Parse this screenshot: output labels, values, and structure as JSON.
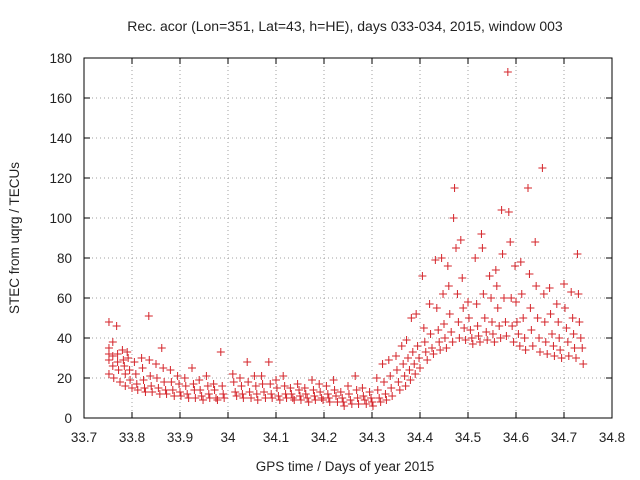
{
  "chart_data": {
    "type": "scatter",
    "title": "Rec. acor (Lon=351, Lat=43, h=HE), days 033-034, 2015, window 003",
    "xlabel": "GPS time / Days of year 2015",
    "ylabel": "STEC from uqrg / TECUs",
    "xlim": [
      33.7,
      34.8
    ],
    "ylim": [
      0,
      180
    ],
    "xticks": [
      "33.7",
      "33.8",
      "33.9",
      "34",
      "34.1",
      "34.2",
      "34.3",
      "34.4",
      "34.5",
      "34.6",
      "34.7",
      "34.8"
    ],
    "yticks": [
      "0",
      "20",
      "40",
      "60",
      "80",
      "100",
      "120",
      "140",
      "160",
      "180"
    ],
    "grid": true,
    "marker": "plus",
    "color": "#d4242a",
    "series": [
      {
        "points": [
          [
            33.752,
            48
          ],
          [
            33.752,
            35
          ],
          [
            33.752,
            32
          ],
          [
            33.752,
            29
          ],
          [
            33.752,
            22
          ],
          [
            33.76,
            38
          ],
          [
            33.76,
            31
          ],
          [
            33.76,
            26
          ],
          [
            33.762,
            20
          ],
          [
            33.768,
            46
          ],
          [
            33.77,
            32
          ],
          [
            33.77,
            28
          ],
          [
            33.772,
            24
          ],
          [
            33.775,
            18
          ],
          [
            33.78,
            34
          ],
          [
            33.782,
            29
          ],
          [
            33.784,
            26
          ],
          [
            33.786,
            22
          ],
          [
            33.786,
            16
          ],
          [
            33.79,
            33
          ],
          [
            33.792,
            30
          ],
          [
            33.795,
            24
          ],
          [
            33.796,
            19
          ],
          [
            33.8,
            15
          ],
          [
            33.805,
            28
          ],
          [
            33.808,
            22
          ],
          [
            33.81,
            17
          ],
          [
            33.812,
            14
          ],
          [
            33.82,
            30
          ],
          [
            33.822,
            25
          ],
          [
            33.824,
            19
          ],
          [
            33.826,
            15
          ],
          [
            33.828,
            13
          ],
          [
            33.835,
            51
          ],
          [
            33.836,
            29
          ],
          [
            33.838,
            21
          ],
          [
            33.84,
            16
          ],
          [
            33.842,
            13
          ],
          [
            33.85,
            27
          ],
          [
            33.852,
            20
          ],
          [
            33.855,
            15
          ],
          [
            33.858,
            12
          ],
          [
            33.862,
            35
          ],
          [
            33.865,
            25
          ],
          [
            33.867,
            18
          ],
          [
            33.87,
            14
          ],
          [
            33.872,
            12
          ],
          [
            33.88,
            24
          ],
          [
            33.882,
            18
          ],
          [
            33.885,
            14
          ],
          [
            33.888,
            11
          ],
          [
            33.895,
            21
          ],
          [
            33.898,
            17
          ],
          [
            33.9,
            13
          ],
          [
            33.902,
            11
          ],
          [
            33.91,
            20
          ],
          [
            33.912,
            16
          ],
          [
            33.915,
            12
          ],
          [
            33.918,
            10
          ],
          [
            33.925,
            25
          ],
          [
            33.928,
            17
          ],
          [
            33.93,
            14
          ],
          [
            33.932,
            10
          ],
          [
            33.94,
            19
          ],
          [
            33.942,
            14
          ],
          [
            33.945,
            11
          ],
          [
            33.948,
            9
          ],
          [
            33.955,
            21
          ],
          [
            33.958,
            16
          ],
          [
            33.96,
            12
          ],
          [
            33.962,
            10
          ],
          [
            33.97,
            17
          ],
          [
            33.972,
            14
          ],
          [
            33.975,
            10
          ],
          [
            33.978,
            9
          ],
          [
            33.985,
            33
          ],
          [
            33.988,
            16
          ],
          [
            33.99,
            12
          ],
          [
            33.992,
            10
          ],
          [
            34.01,
            22
          ],
          [
            34.012,
            18
          ],
          [
            34.015,
            13
          ],
          [
            34.018,
            11
          ],
          [
            34.025,
            20
          ],
          [
            34.028,
            16
          ],
          [
            34.03,
            12
          ],
          [
            34.032,
            10
          ],
          [
            34.04,
            28
          ],
          [
            34.042,
            18
          ],
          [
            34.045,
            13
          ],
          [
            34.048,
            10
          ],
          [
            34.055,
            21
          ],
          [
            34.058,
            16
          ],
          [
            34.06,
            12
          ],
          [
            34.062,
            9
          ],
          [
            34.07,
            21
          ],
          [
            34.072,
            17
          ],
          [
            34.075,
            13
          ],
          [
            34.078,
            10
          ],
          [
            34.085,
            28
          ],
          [
            34.088,
            17
          ],
          [
            34.09,
            12
          ],
          [
            34.092,
            10
          ],
          [
            34.1,
            19
          ],
          [
            34.102,
            15
          ],
          [
            34.105,
            11
          ],
          [
            34.108,
            9
          ],
          [
            34.115,
            21
          ],
          [
            34.118,
            16
          ],
          [
            34.12,
            12
          ],
          [
            34.122,
            10
          ],
          [
            34.13,
            15
          ],
          [
            34.132,
            12
          ],
          [
            34.135,
            10
          ],
          [
            34.138,
            9
          ],
          [
            34.145,
            17
          ],
          [
            34.148,
            14
          ],
          [
            34.15,
            11
          ],
          [
            34.152,
            9
          ],
          [
            34.16,
            15
          ],
          [
            34.162,
            12
          ],
          [
            34.165,
            10
          ],
          [
            34.168,
            8
          ],
          [
            34.175,
            19
          ],
          [
            34.178,
            14
          ],
          [
            34.18,
            11
          ],
          [
            34.182,
            9
          ],
          [
            34.19,
            17
          ],
          [
            34.192,
            13
          ],
          [
            34.195,
            10
          ],
          [
            34.198,
            9
          ],
          [
            34.205,
            16
          ],
          [
            34.208,
            12
          ],
          [
            34.21,
            10
          ],
          [
            34.212,
            8
          ],
          [
            34.22,
            19
          ],
          [
            34.222,
            14
          ],
          [
            34.225,
            11
          ],
          [
            34.228,
            8
          ],
          [
            34.235,
            13
          ],
          [
            34.238,
            10
          ],
          [
            34.24,
            8
          ],
          [
            34.242,
            6
          ],
          [
            34.25,
            16
          ],
          [
            34.252,
            12
          ],
          [
            34.255,
            9
          ],
          [
            34.258,
            7
          ],
          [
            34.265,
            21
          ],
          [
            34.268,
            14
          ],
          [
            34.27,
            10
          ],
          [
            34.272,
            7
          ],
          [
            34.28,
            15
          ],
          [
            34.282,
            11
          ],
          [
            34.285,
            9
          ],
          [
            34.288,
            7
          ],
          [
            34.295,
            13
          ],
          [
            34.298,
            10
          ],
          [
            34.3,
            8
          ],
          [
            34.302,
            6
          ],
          [
            34.31,
            20
          ],
          [
            34.312,
            14
          ],
          [
            34.315,
            10
          ],
          [
            34.318,
            8
          ],
          [
            34.322,
            27
          ],
          [
            34.325,
            18
          ],
          [
            34.328,
            12
          ],
          [
            34.33,
            9
          ],
          [
            34.335,
            29
          ],
          [
            34.338,
            21
          ],
          [
            34.34,
            15
          ],
          [
            34.342,
            11
          ],
          [
            34.35,
            31
          ],
          [
            34.352,
            24
          ],
          [
            34.355,
            18
          ],
          [
            34.358,
            14
          ],
          [
            34.362,
            36
          ],
          [
            34.365,
            27
          ],
          [
            34.368,
            21
          ],
          [
            34.37,
            16
          ],
          [
            34.372,
            39
          ],
          [
            34.375,
            30
          ],
          [
            34.378,
            24
          ],
          [
            34.38,
            19
          ],
          [
            34.382,
            50
          ],
          [
            34.385,
            33
          ],
          [
            34.388,
            27
          ],
          [
            34.39,
            22
          ],
          [
            34.392,
            52
          ],
          [
            34.395,
            36
          ],
          [
            34.398,
            30
          ],
          [
            34.4,
            25
          ],
          [
            34.405,
            71
          ],
          [
            34.408,
            45
          ],
          [
            34.41,
            38
          ],
          [
            34.412,
            33
          ],
          [
            34.415,
            29
          ],
          [
            34.42,
            57
          ],
          [
            34.422,
            42
          ],
          [
            34.425,
            35
          ],
          [
            34.428,
            32
          ],
          [
            34.432,
            79
          ],
          [
            34.435,
            55
          ],
          [
            34.438,
            44
          ],
          [
            34.44,
            38
          ],
          [
            34.442,
            34
          ],
          [
            34.445,
            80
          ],
          [
            34.448,
            62
          ],
          [
            34.45,
            47
          ],
          [
            34.452,
            40
          ],
          [
            34.455,
            35
          ],
          [
            34.458,
            76
          ],
          [
            34.46,
            66
          ],
          [
            34.462,
            52
          ],
          [
            34.465,
            43
          ],
          [
            34.468,
            38
          ],
          [
            34.47,
            100
          ],
          [
            34.472,
            115
          ],
          [
            34.475,
            85
          ],
          [
            34.478,
            62
          ],
          [
            34.48,
            48
          ],
          [
            34.482,
            40
          ],
          [
            34.485,
            89
          ],
          [
            34.488,
            70
          ],
          [
            34.49,
            55
          ],
          [
            34.492,
            45
          ],
          [
            34.495,
            39
          ],
          [
            34.5,
            58
          ],
          [
            34.502,
            50
          ],
          [
            34.505,
            44
          ],
          [
            34.508,
            40
          ],
          [
            34.51,
            37
          ],
          [
            34.515,
            80
          ],
          [
            34.518,
            57
          ],
          [
            34.52,
            46
          ],
          [
            34.522,
            41
          ],
          [
            34.525,
            38
          ],
          [
            34.528,
            92
          ],
          [
            34.53,
            85
          ],
          [
            34.532,
            62
          ],
          [
            34.535,
            50
          ],
          [
            34.538,
            43
          ],
          [
            34.54,
            39
          ],
          [
            34.545,
            71
          ],
          [
            34.548,
            60
          ],
          [
            34.55,
            48
          ],
          [
            34.552,
            42
          ],
          [
            34.555,
            38
          ],
          [
            34.558,
            74
          ],
          [
            34.56,
            66
          ],
          [
            34.562,
            55
          ],
          [
            34.565,
            46
          ],
          [
            34.568,
            40
          ],
          [
            34.57,
            104
          ],
          [
            34.572,
            82
          ],
          [
            34.575,
            60
          ],
          [
            34.578,
            48
          ],
          [
            34.58,
            41
          ],
          [
            34.583,
            173
          ],
          [
            34.585,
            103
          ],
          [
            34.588,
            88
          ],
          [
            34.59,
            60
          ],
          [
            34.592,
            46
          ],
          [
            34.595,
            38
          ],
          [
            34.598,
            76
          ],
          [
            34.6,
            58
          ],
          [
            34.602,
            48
          ],
          [
            34.605,
            42
          ],
          [
            34.608,
            36
          ],
          [
            34.61,
            78
          ],
          [
            34.612,
            62
          ],
          [
            34.615,
            50
          ],
          [
            34.618,
            40
          ],
          [
            34.62,
            34
          ],
          [
            34.625,
            115
          ],
          [
            34.628,
            72
          ],
          [
            34.63,
            55
          ],
          [
            34.632,
            44
          ],
          [
            34.635,
            36
          ],
          [
            34.64,
            88
          ],
          [
            34.642,
            66
          ],
          [
            34.645,
            50
          ],
          [
            34.648,
            40
          ],
          [
            34.65,
            33
          ],
          [
            34.655,
            125
          ],
          [
            34.658,
            62
          ],
          [
            34.66,
            48
          ],
          [
            34.662,
            38
          ],
          [
            34.665,
            32
          ],
          [
            34.67,
            65
          ],
          [
            34.672,
            52
          ],
          [
            34.675,
            42
          ],
          [
            34.678,
            36
          ],
          [
            34.68,
            31
          ],
          [
            34.685,
            57
          ],
          [
            34.688,
            48
          ],
          [
            34.69,
            40
          ],
          [
            34.692,
            34
          ],
          [
            34.695,
            30
          ],
          [
            34.7,
            67
          ],
          [
            34.702,
            55
          ],
          [
            34.705,
            45
          ],
          [
            34.708,
            38
          ],
          [
            34.71,
            31
          ],
          [
            34.715,
            63
          ],
          [
            34.718,
            50
          ],
          [
            34.72,
            42
          ],
          [
            34.722,
            35
          ],
          [
            34.725,
            30
          ],
          [
            34.728,
            82
          ],
          [
            34.73,
            62
          ],
          [
            34.732,
            48
          ],
          [
            34.735,
            40
          ],
          [
            34.738,
            35
          ],
          [
            34.74,
            27
          ]
        ]
      }
    ]
  }
}
